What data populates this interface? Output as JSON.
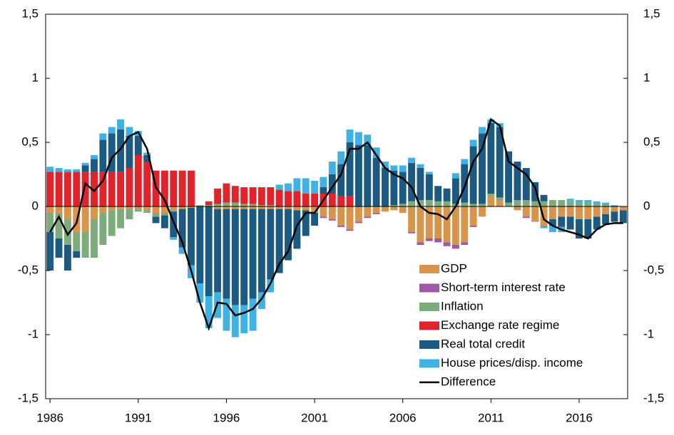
{
  "chart_data": {
    "type": "bar",
    "stacked": true,
    "x": [
      1986,
      1986.5,
      1987,
      1987.5,
      1988,
      1988.5,
      1989,
      1989.5,
      1990,
      1990.5,
      1991,
      1991.5,
      1992,
      1992.5,
      1993,
      1993.5,
      1994,
      1994.5,
      1995,
      1995.5,
      1996,
      1996.5,
      1997,
      1997.5,
      1998,
      1998.5,
      1999,
      1999.5,
      2000,
      2000.5,
      2001,
      2001.5,
      2002,
      2002.5,
      2003,
      2003.5,
      2004,
      2004.5,
      2005,
      2005.5,
      2006,
      2006.5,
      2007,
      2007.5,
      2008,
      2008.5,
      2009,
      2009.5,
      2010,
      2010.5,
      2011,
      2011.5,
      2012,
      2012.5,
      2013,
      2013.5,
      2014,
      2014.5,
      2015,
      2015.5,
      2016,
      2016.5,
      2017,
      2017.5,
      2018,
      2018.5
    ],
    "xlim": [
      1985.75,
      2018.75
    ],
    "xticks": [
      1986,
      1991,
      1996,
      2001,
      2006,
      2011,
      2016
    ],
    "ylim": [
      -1.5,
      1.5
    ],
    "yticks": [
      {
        "value": -1.5,
        "label": "-1,5"
      },
      -1,
      {
        "value": -0.5,
        "label": "-0,5"
      },
      0,
      {
        "value": 0.5,
        "label": "0,5"
      },
      1,
      {
        "value": 1.5,
        "label": "1,5"
      }
    ],
    "y2lim": [
      -1.5,
      1.5
    ],
    "y2ticks": [
      {
        "value": -1.5,
        "label": "-1,5"
      },
      -1,
      {
        "value": -0.5,
        "label": "-0,5"
      },
      0,
      {
        "value": 0.5,
        "label": "0,5"
      },
      1,
      {
        "value": 1.5,
        "label": "1,5"
      }
    ],
    "legend": "lower-right",
    "series": [
      {
        "name": "GDP",
        "color": "#d9944c",
        "values": [
          -0.05,
          -0.05,
          -0.1,
          -0.2,
          -0.2,
          -0.1,
          -0.05,
          -0.03,
          -0.02,
          -0.02,
          -0.02,
          -0.03,
          -0.05,
          -0.05,
          -0.03,
          -0.02,
          -0.01,
          0,
          0,
          -0.02,
          -0.02,
          -0.02,
          -0.02,
          -0.02,
          -0.02,
          -0.02,
          -0.02,
          -0.02,
          -0.03,
          -0.03,
          -0.05,
          -0.08,
          -0.1,
          -0.15,
          -0.18,
          -0.12,
          -0.08,
          -0.05,
          -0.04,
          -0.03,
          -0.05,
          -0.2,
          -0.28,
          -0.25,
          -0.25,
          -0.28,
          -0.3,
          -0.28,
          -0.15,
          -0.08,
          0.08,
          0.05,
          0,
          -0.03,
          -0.08,
          -0.12,
          -0.15,
          -0.1,
          -0.08,
          -0.08,
          -0.1,
          -0.1,
          -0.08,
          -0.06,
          -0.04,
          -0.03
        ]
      },
      {
        "name": "Short-term interest rate",
        "color": "#9b5aa3",
        "values": [
          0,
          0,
          0,
          0,
          0,
          0,
          0,
          0,
          0,
          0,
          0,
          0,
          0,
          0,
          0,
          0,
          0,
          0,
          0,
          0,
          0,
          0,
          0,
          0,
          0,
          0,
          0,
          0,
          0,
          0,
          0,
          -0.01,
          -0.01,
          -0.01,
          -0.01,
          -0.01,
          -0.01,
          -0.01,
          0,
          0,
          0,
          -0.01,
          -0.02,
          -0.02,
          -0.03,
          -0.03,
          -0.03,
          -0.02,
          -0.01,
          0,
          0,
          0,
          0,
          0,
          -0.01,
          0,
          0,
          0,
          0,
          0,
          0,
          0,
          0,
          0,
          0,
          0
        ]
      },
      {
        "name": "Inflation",
        "color": "#7dab7c",
        "values": [
          -0.15,
          -0.2,
          -0.2,
          -0.15,
          -0.2,
          -0.3,
          -0.25,
          -0.2,
          -0.15,
          -0.08,
          -0.02,
          -0.02,
          -0.03,
          -0.02,
          -0.01,
          0,
          0,
          0.01,
          0.01,
          0.02,
          0.03,
          0.03,
          0.02,
          0.02,
          0.01,
          0.01,
          0,
          0,
          0,
          0,
          0,
          0,
          0,
          0,
          0,
          0,
          0,
          0,
          0,
          0.01,
          0.02,
          0.04,
          0.05,
          0.05,
          0.04,
          0.04,
          0.02,
          0.03,
          0.02,
          0.02,
          0.02,
          0.02,
          0.03,
          0.05,
          0.05,
          0.04,
          0.04,
          0.05,
          0.05,
          0.04,
          0.03,
          0.03,
          0.02,
          0.01,
          0,
          0
        ]
      },
      {
        "name": "Exchange rate regime",
        "color": "#e1242b",
        "values": [
          0.27,
          0.27,
          0.27,
          0.27,
          0.27,
          0.27,
          0.27,
          0.27,
          0.27,
          0.3,
          0.4,
          0.35,
          0.28,
          0.28,
          0.28,
          0.28,
          0.28,
          0,
          0.03,
          0.12,
          0.15,
          0.13,
          0.13,
          0.13,
          0.14,
          0.14,
          0.13,
          0.12,
          0.12,
          0.1,
          0.1,
          0.1,
          0.1,
          0.08,
          0.08,
          0,
          0,
          0,
          0,
          0,
          0,
          0,
          0,
          0,
          0,
          0,
          0,
          0,
          0,
          0,
          0,
          0,
          0,
          0,
          0,
          0,
          0,
          0,
          0,
          0,
          0,
          0,
          0,
          0,
          0,
          0
        ]
      },
      {
        "name": "Real total credit",
        "color": "#1d5a82",
        "values": [
          -0.3,
          -0.15,
          -0.2,
          -0.05,
          0.05,
          0.1,
          0.25,
          0.3,
          0.33,
          0.25,
          0.15,
          0.05,
          -0.05,
          -0.1,
          -0.2,
          -0.3,
          -0.45,
          -0.6,
          -0.7,
          -0.65,
          -0.7,
          -0.75,
          -0.75,
          -0.7,
          -0.65,
          -0.55,
          -0.5,
          -0.4,
          -0.3,
          -0.2,
          -0.1,
          0.05,
          0.15,
          0.25,
          0.42,
          0.48,
          0.48,
          0.38,
          0.3,
          0.27,
          0.25,
          0.3,
          0.25,
          0.2,
          0.12,
          0.1,
          0.2,
          0.3,
          0.45,
          0.55,
          0.55,
          0.55,
          0.4,
          0.3,
          0.25,
          0.15,
          0.05,
          -0.05,
          -0.08,
          -0.1,
          -0.15,
          -0.15,
          -0.1,
          -0.08,
          -0.08,
          -0.1
        ]
      },
      {
        "name": "House prices/disp. income",
        "color": "#3fb1e3",
        "values": [
          0.04,
          0.03,
          0.02,
          0.02,
          0.02,
          0.03,
          0.05,
          0.05,
          0.08,
          0.07,
          0.04,
          0.02,
          0,
          0,
          -0.02,
          -0.05,
          -0.1,
          -0.15,
          -0.25,
          -0.2,
          -0.25,
          -0.25,
          -0.22,
          -0.25,
          -0.13,
          -0.1,
          0.04,
          0.06,
          0.1,
          0.12,
          0.1,
          0.08,
          0.1,
          0.1,
          0.1,
          0.1,
          0.08,
          0.08,
          0.05,
          0.04,
          0.05,
          0.04,
          0.03,
          0.02,
          0,
          0,
          0.04,
          0.04,
          0.05,
          0.05,
          0.03,
          0.03,
          0,
          0,
          0,
          0,
          -0.02,
          -0.05,
          -0.04,
          0.02,
          0.02,
          0.02,
          0.02,
          0.02,
          0.01,
          0
        ]
      },
      {
        "name": "Difference",
        "type": "line",
        "color": "#000000",
        "values": [
          -0.2,
          -0.08,
          -0.22,
          -0.13,
          0.18,
          0.12,
          0.2,
          0.38,
          0.45,
          0.55,
          0.58,
          0.45,
          0.15,
          0.05,
          -0.12,
          -0.28,
          -0.5,
          -0.75,
          -0.95,
          -0.75,
          -0.76,
          -0.85,
          -0.83,
          -0.8,
          -0.72,
          -0.6,
          -0.45,
          -0.35,
          -0.15,
          -0.05,
          -0.05,
          0.05,
          0.15,
          0.25,
          0.45,
          0.45,
          0.5,
          0.4,
          0.3,
          0.25,
          0.22,
          0.15,
          0,
          -0.05,
          -0.06,
          -0.1,
          0,
          0.15,
          0.35,
          0.45,
          0.68,
          0.63,
          0.35,
          0.3,
          0.25,
          0.15,
          -0.1,
          -0.15,
          -0.18,
          -0.2,
          -0.22,
          -0.25,
          -0.18,
          -0.14,
          -0.13,
          -0.13
        ]
      }
    ]
  }
}
